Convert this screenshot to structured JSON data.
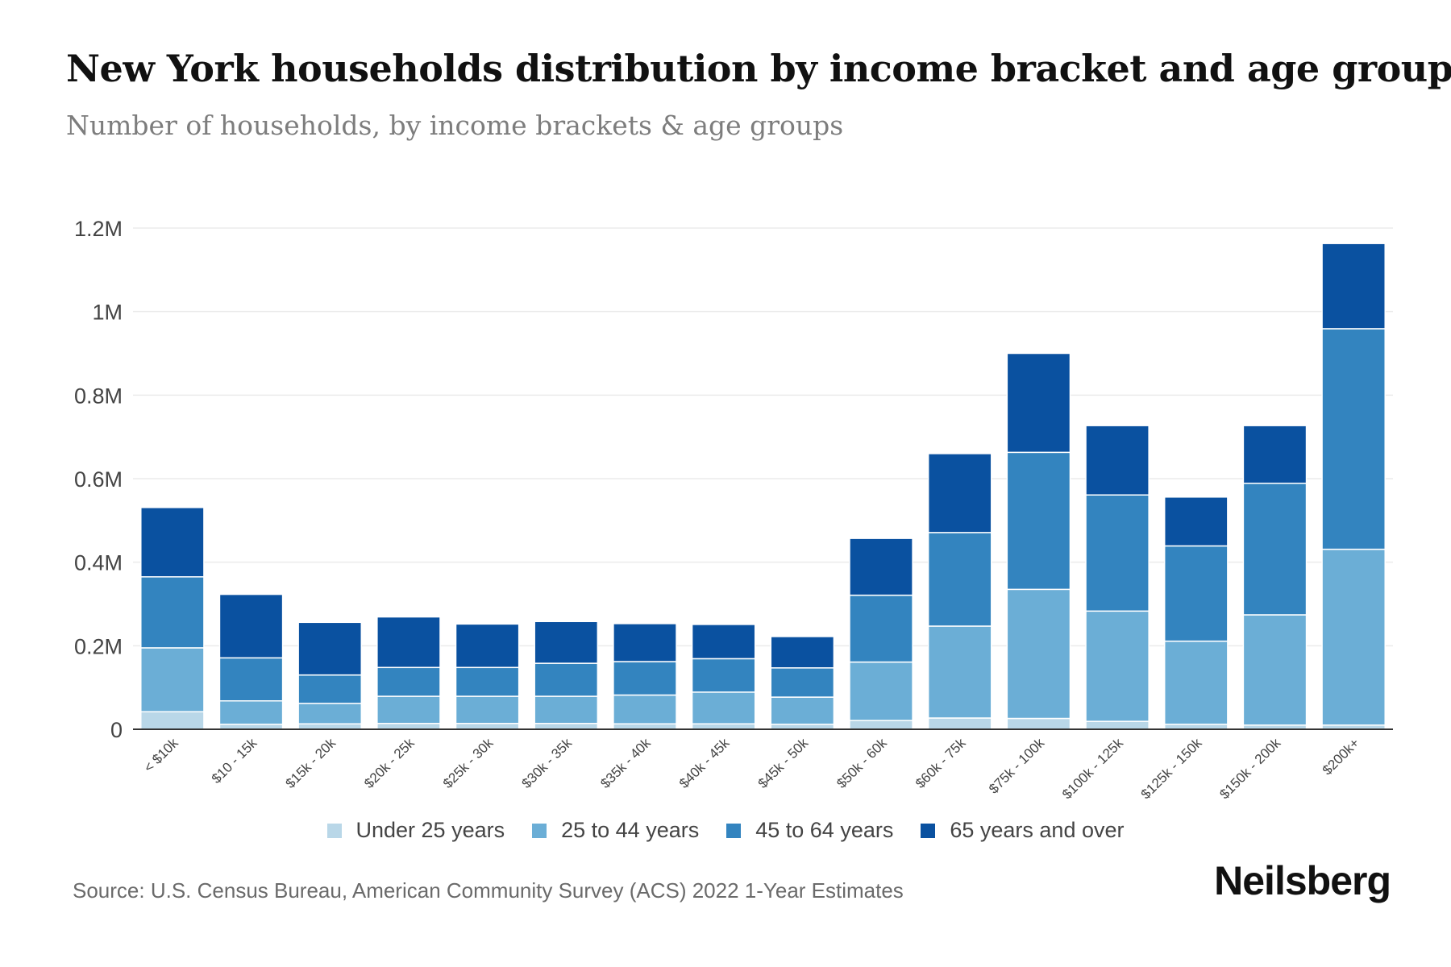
{
  "header": {
    "title": "New York households distribution by income bracket and age group",
    "subtitle": "Number of households, by income brackets & age groups"
  },
  "footer": {
    "source": "Source: U.S. Census Bureau, American Community Survey (ACS) 2022 1-Year Estimates",
    "brand": "Neilsberg"
  },
  "colors": {
    "under_25": "#b9d7e8",
    "age_25_44": "#6baed6",
    "age_45_64": "#3384bf",
    "age_65_plus": "#0a51a0",
    "grid": "#ebebeb",
    "axis": "#333333"
  },
  "chart_data": {
    "type": "bar",
    "stacked": true,
    "categories": [
      "< $10k",
      "$10 - 15k",
      "$15k - 20k",
      "$20k - 25k",
      "$25k - 30k",
      "$30k - 35k",
      "$35k - 40k",
      "$40k - 45k",
      "$45k - 50k",
      "$50k - 60k",
      "$60k - 75k",
      "$75k - 100k",
      "$100k - 125k",
      "$125k - 150k",
      "$150k - 200k",
      "$200k+"
    ],
    "series": [
      {
        "name": "Under 25 years",
        "color_key": "under_25",
        "values": [
          42000,
          12000,
          13000,
          14000,
          14000,
          14000,
          13000,
          13000,
          12000,
          21000,
          27000,
          26000,
          19000,
          12000,
          10000,
          10000
        ]
      },
      {
        "name": "25 to 44 years",
        "color_key": "age_25_44",
        "values": [
          153000,
          56000,
          49000,
          65000,
          65000,
          65000,
          69000,
          76000,
          65000,
          140000,
          220000,
          309000,
          264000,
          199000,
          264000,
          421000
        ]
      },
      {
        "name": "45 to 64 years",
        "color_key": "age_45_64",
        "values": [
          170000,
          103000,
          68000,
          69000,
          69000,
          79000,
          80000,
          80000,
          70000,
          160000,
          224000,
          328000,
          278000,
          228000,
          315000,
          528000
        ]
      },
      {
        "name": "65 years and over",
        "color_key": "age_65_plus",
        "values": [
          166000,
          152000,
          126000,
          121000,
          104000,
          100000,
          91000,
          82000,
          75000,
          136000,
          189000,
          237000,
          166000,
          117000,
          138000,
          204000
        ]
      }
    ],
    "y_ticks": [
      "0",
      "0.2M",
      "0.4M",
      "0.6M",
      "0.8M",
      "1M",
      "1.2M"
    ],
    "ylim": [
      0,
      1200000
    ],
    "grid": true,
    "legend_position": "bottom"
  }
}
